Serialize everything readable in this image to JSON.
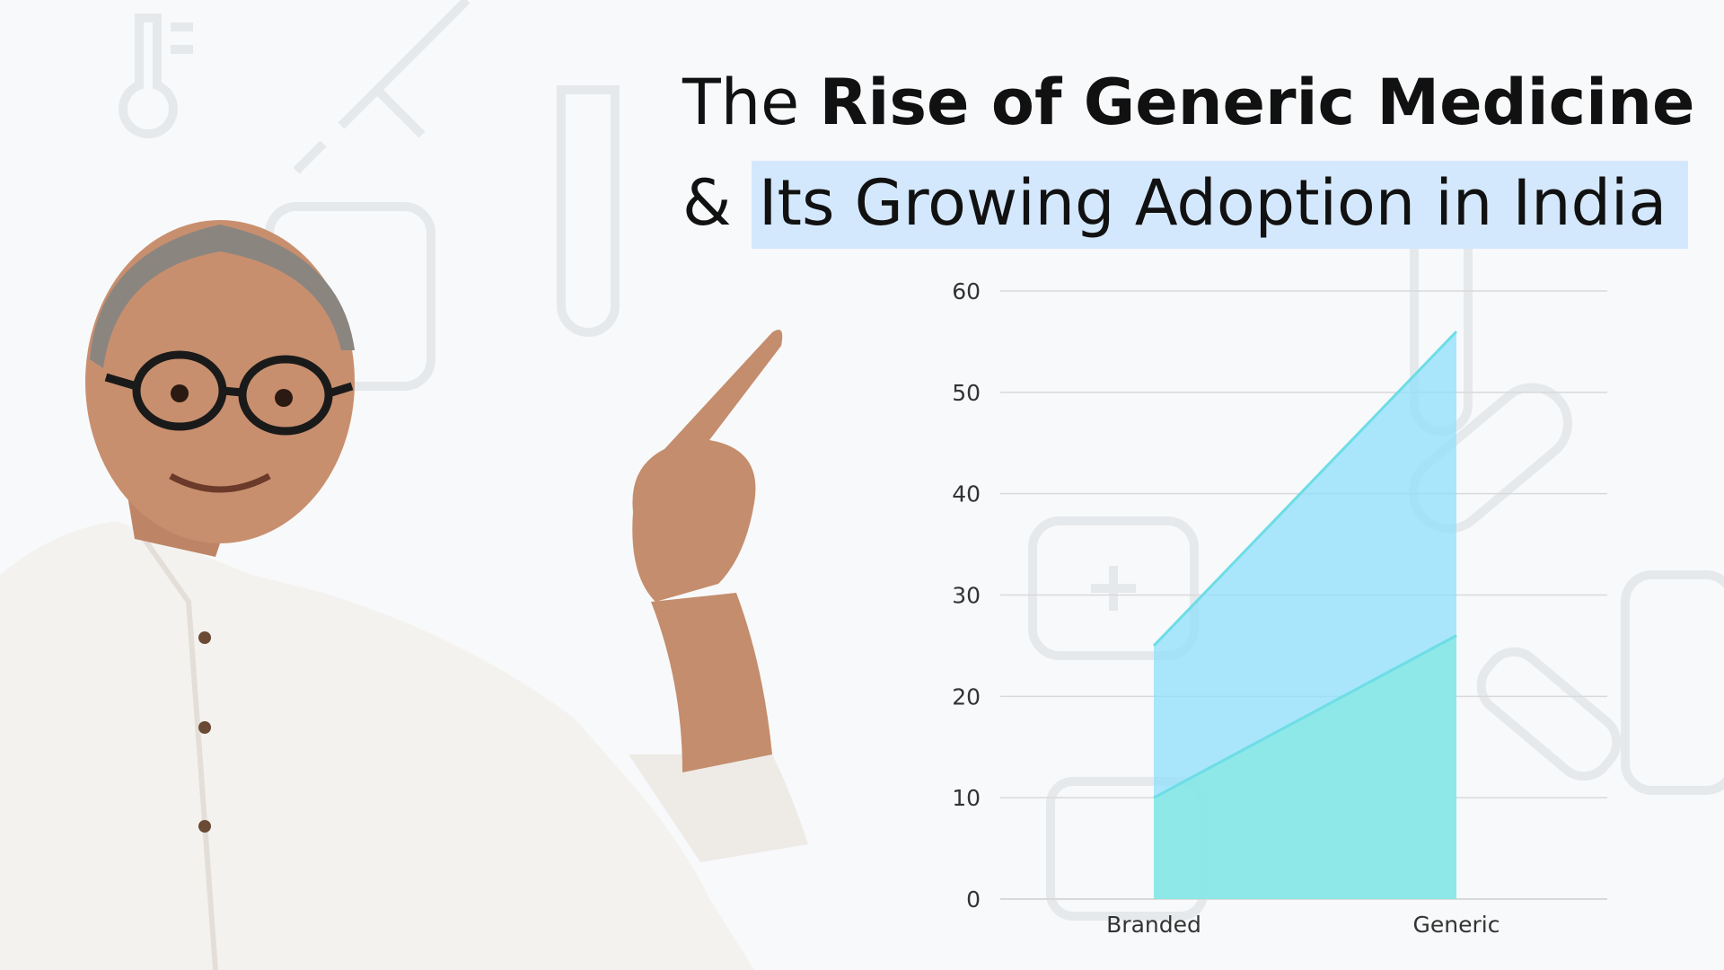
{
  "title": {
    "line1_prefix": "The",
    "line1_bold": "Rise of Generic Medicine",
    "line2_prefix": "&",
    "line2_highlight": "Its Growing Adoption in India"
  },
  "colors": {
    "highlight": "#d4e8fd",
    "series_upper": "#8fdffb",
    "series_lower": "#8ae8e4",
    "line": "#6ddde6",
    "grid": "#d9d9d9",
    "text": "#111111"
  },
  "chart_data": {
    "type": "area",
    "categories": [
      "Branded",
      "Generic"
    ],
    "series": [
      {
        "values": [
          25,
          56
        ]
      },
      {
        "values": [
          10,
          26
        ]
      }
    ],
    "yticks": [
      0,
      10,
      20,
      30,
      40,
      50,
      60
    ],
    "ylim": [
      0,
      60
    ],
    "grid": true,
    "legend": "none"
  }
}
